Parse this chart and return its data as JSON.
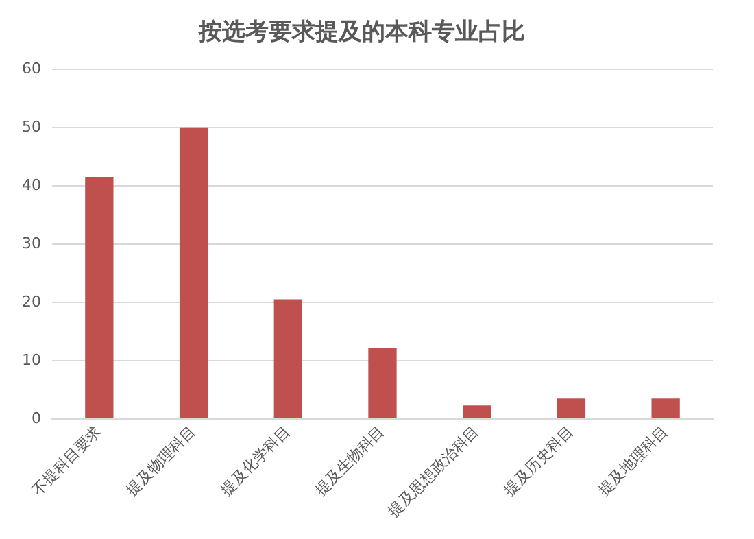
{
  "chart_data": {
    "type": "bar",
    "title": "按选考要求提及的本科专业占比",
    "categories": [
      "不提科目要求",
      "提及物理科目",
      "提及化学科目",
      "提及生物科目",
      "提及思想政治科目",
      "提及历史科目",
      "提及地理科目"
    ],
    "values": [
      41.5,
      50,
      20.5,
      12.2,
      2.3,
      3.5,
      3.5
    ],
    "color": "#c0504d",
    "ylim": [
      0,
      60
    ],
    "yticks": [
      0,
      10,
      20,
      30,
      40,
      50,
      60
    ],
    "grid": "y",
    "legend": false
  }
}
